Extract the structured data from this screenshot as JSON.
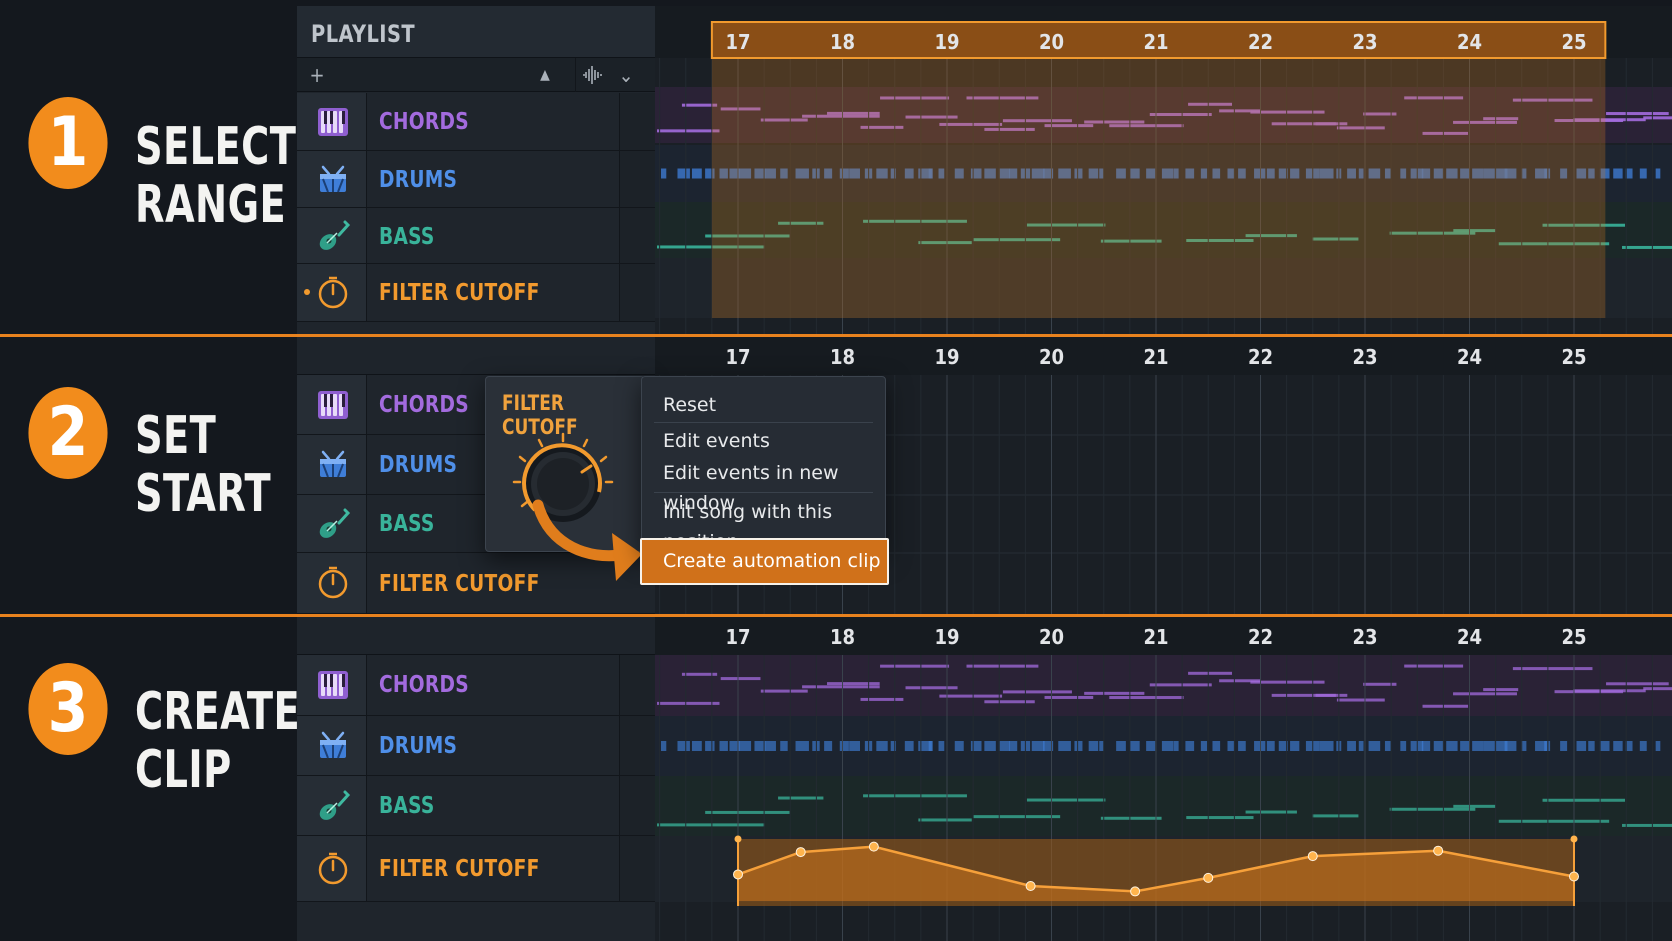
{
  "steps": [
    {
      "number": "1",
      "line1": "SELECT",
      "line2": "RANGE"
    },
    {
      "number": "2",
      "line1": "SET",
      "line2": "START"
    },
    {
      "number": "3",
      "line1": "CREATE",
      "line2": "CLIP"
    }
  ],
  "playlist": {
    "title": "PLAYLIST",
    "add_icon": "plus-icon",
    "toolbar_icons": [
      "plus-icon",
      "triangle-up-icon",
      "waveform-icon",
      "chevron-down-icon"
    ]
  },
  "tracks": [
    {
      "name": "CHORDS",
      "icon": "piano-keys-icon",
      "color": "#a36bde"
    },
    {
      "name": "DRUMS",
      "icon": "drum-kit-icon",
      "color": "#4f8fe8"
    },
    {
      "name": "BASS",
      "icon": "guitar-icon",
      "color": "#39b39a"
    },
    {
      "name": "FILTER CUTOFF",
      "icon": "knob-icon",
      "color": "#f29a2e"
    }
  ],
  "bars": [
    "17",
    "18",
    "19",
    "20",
    "21",
    "22",
    "23",
    "24",
    "25"
  ],
  "context": {
    "knob_title": "FILTER CUTOFF",
    "menu_items": [
      "Reset",
      "Edit events",
      "Edit events in new window",
      "Init song with this position",
      "Create automation clip"
    ],
    "highlighted": "Create automation clip"
  },
  "automation": {
    "points": [
      {
        "bar": 17.0,
        "value": 0.45
      },
      {
        "bar": 17.6,
        "value": 0.78
      },
      {
        "bar": 18.3,
        "value": 0.86
      },
      {
        "bar": 19.8,
        "value": 0.28
      },
      {
        "bar": 20.8,
        "value": 0.2
      },
      {
        "bar": 21.5,
        "value": 0.4
      },
      {
        "bar": 22.5,
        "value": 0.72
      },
      {
        "bar": 23.7,
        "value": 0.8
      },
      {
        "bar": 25.0,
        "value": 0.42
      }
    ]
  },
  "colors": {
    "accent": "#f28c1c",
    "chords": "#a36bde",
    "drums": "#4f8fe8",
    "bass": "#39b39a",
    "automation": "#f29a2e"
  }
}
